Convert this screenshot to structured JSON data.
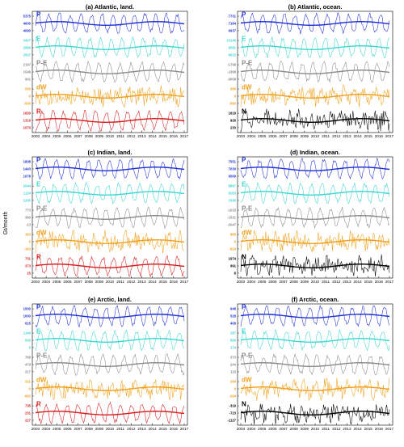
{
  "ylabel": "Gt/month",
  "years": [
    "2003",
    "2004",
    "2005",
    "2006",
    "2007",
    "2008",
    "2009",
    "2010",
    "2011",
    "2012",
    "2013",
    "2014",
    "2015",
    "2016",
    "2017"
  ],
  "colors": {
    "P": "#1f2fd6",
    "E": "#3ed6cf",
    "P-E": "#8a8a8a",
    "dW": "#f0a01c",
    "R": "#d61c1c",
    "N": "#000000"
  },
  "chart_data": [
    {
      "type": "line",
      "title": "(a) Atlantic, land.",
      "series": [
        {
          "name": "P",
          "mean": 4600,
          "amp": 600,
          "ticks": [
            "5375",
            "4600",
            "4090"
          ]
        },
        {
          "name": "E",
          "mean": 2960,
          "amp": 450,
          "ticks": [
            "3407",
            "2960",
            "2507"
          ]
        },
        {
          "name": "P-E",
          "mean": 1548,
          "amp": 650,
          "ticks": [
            "2197",
            "1548",
            "901"
          ]
        },
        {
          "name": "dW",
          "mean": 0,
          "amp": 560,
          "ticks": [
            "560",
            "0",
            "-500"
          ]
        },
        {
          "name": "R",
          "mean": 1319,
          "amp": 330,
          "ticks": [
            "1650",
            "1319",
            "1070"
          ]
        }
      ]
    },
    {
      "type": "line",
      "title": "(b) Atlantic, ocean.",
      "series": [
        {
          "name": "P",
          "mean": 7184,
          "amp": 550,
          "ticks": [
            "7731",
            "7184",
            "6637"
          ]
        },
        {
          "name": "E",
          "mean": 9581,
          "amp": 560,
          "ticks": [
            "10140",
            "9581",
            "9022"
          ]
        },
        {
          "name": "P-E",
          "mean": -2398,
          "amp": 600,
          "ticks": [
            "-1798",
            "-2398",
            "-3008"
          ]
        },
        {
          "name": "dW",
          "mean": 0,
          "amp": 560,
          "ticks": [
            "560",
            "0",
            "-560"
          ]
        },
        {
          "name": "N",
          "mean": 926,
          "amp": 690,
          "ticks": [
            "1619",
            "926",
            "233"
          ]
        }
      ]
    },
    {
      "type": "line",
      "title": "(c) Indian, land.",
      "series": [
        {
          "name": "P",
          "mean": 1443,
          "amp": 370,
          "ticks": [
            "1808",
            "1443",
            "1078"
          ]
        },
        {
          "name": "E",
          "mean": 1124,
          "amp": 80,
          "ticks": [
            "1044",
            "1124",
            "1205"
          ]
        },
        {
          "name": "P-E",
          "mean": 380,
          "amp": 390,
          "ticks": [
            "773",
            "380",
            "-13"
          ]
        },
        {
          "name": "dW",
          "mean": 0,
          "amp": 160,
          "ticks": [
            "163",
            "0",
            "-163"
          ]
        },
        {
          "name": "R",
          "mean": 373,
          "amp": 360,
          "ticks": [
            "731",
            "373",
            "15"
          ]
        }
      ]
    },
    {
      "type": "line",
      "title": "(d) Indian, ocean.",
      "series": [
        {
          "name": "P",
          "mean": 7030,
          "amp": 520,
          "ticks": [
            "7551",
            "7030",
            "6509"
          ]
        },
        {
          "name": "E",
          "mean": 8263,
          "amp": 630,
          "ticks": [
            "8897",
            "8263",
            "7630"
          ]
        },
        {
          "name": "P-E",
          "mean": -1531,
          "amp": 520,
          "ticks": [
            "-1015",
            "-1531",
            "-2047"
          ]
        },
        {
          "name": "dW",
          "mean": 0,
          "amp": 860,
          "ticks": [
            "865",
            "0",
            "-824"
          ]
        },
        {
          "name": "N",
          "mean": 991,
          "amp": 980,
          "ticks": [
            "1974",
            "991",
            "8"
          ]
        }
      ]
    },
    {
      "type": "line",
      "title": "(e) Arctic, land.",
      "series": [
        {
          "name": "P",
          "mean": 1000,
          "amp": 480,
          "ticks": [
            "1500",
            "1000",
            "615"
          ]
        },
        {
          "name": "E",
          "mean": 560,
          "amp": 580,
          "ticks": [
            "1140",
            "560",
            "0"
          ]
        },
        {
          "name": "P-E",
          "mean": 479,
          "amp": 290,
          "ticks": [
            "768",
            "479",
            "217"
          ]
        },
        {
          "name": "dW",
          "mean": 0,
          "amp": 611,
          "ticks": [
            "611",
            "0",
            "-602"
          ]
        },
        {
          "name": "R",
          "mean": 231,
          "amp": 500,
          "ticks": [
            "735",
            "231",
            "227"
          ]
        }
      ]
    },
    {
      "type": "line",
      "title": "(f) Arctic, ocean.",
      "series": [
        {
          "name": "P",
          "mean": 528,
          "amp": 120,
          "ticks": [
            "648",
            "528",
            "408"
          ]
        },
        {
          "name": "E",
          "mean": 566,
          "amp": 280,
          "ticks": [
            "287",
            "566",
            "174"
          ]
        },
        {
          "name": "P-E",
          "mean": 244,
          "amp": 130,
          "ticks": [
            "373",
            "244",
            "115"
          ]
        },
        {
          "name": "dW",
          "mean": 0,
          "amp": 264,
          "ticks": [
            "264",
            "0",
            "-264"
          ]
        },
        {
          "name": "N",
          "mean": -723,
          "amp": 404,
          "ticks": [
            "-319",
            "-723",
            "-1127"
          ]
        }
      ]
    }
  ]
}
